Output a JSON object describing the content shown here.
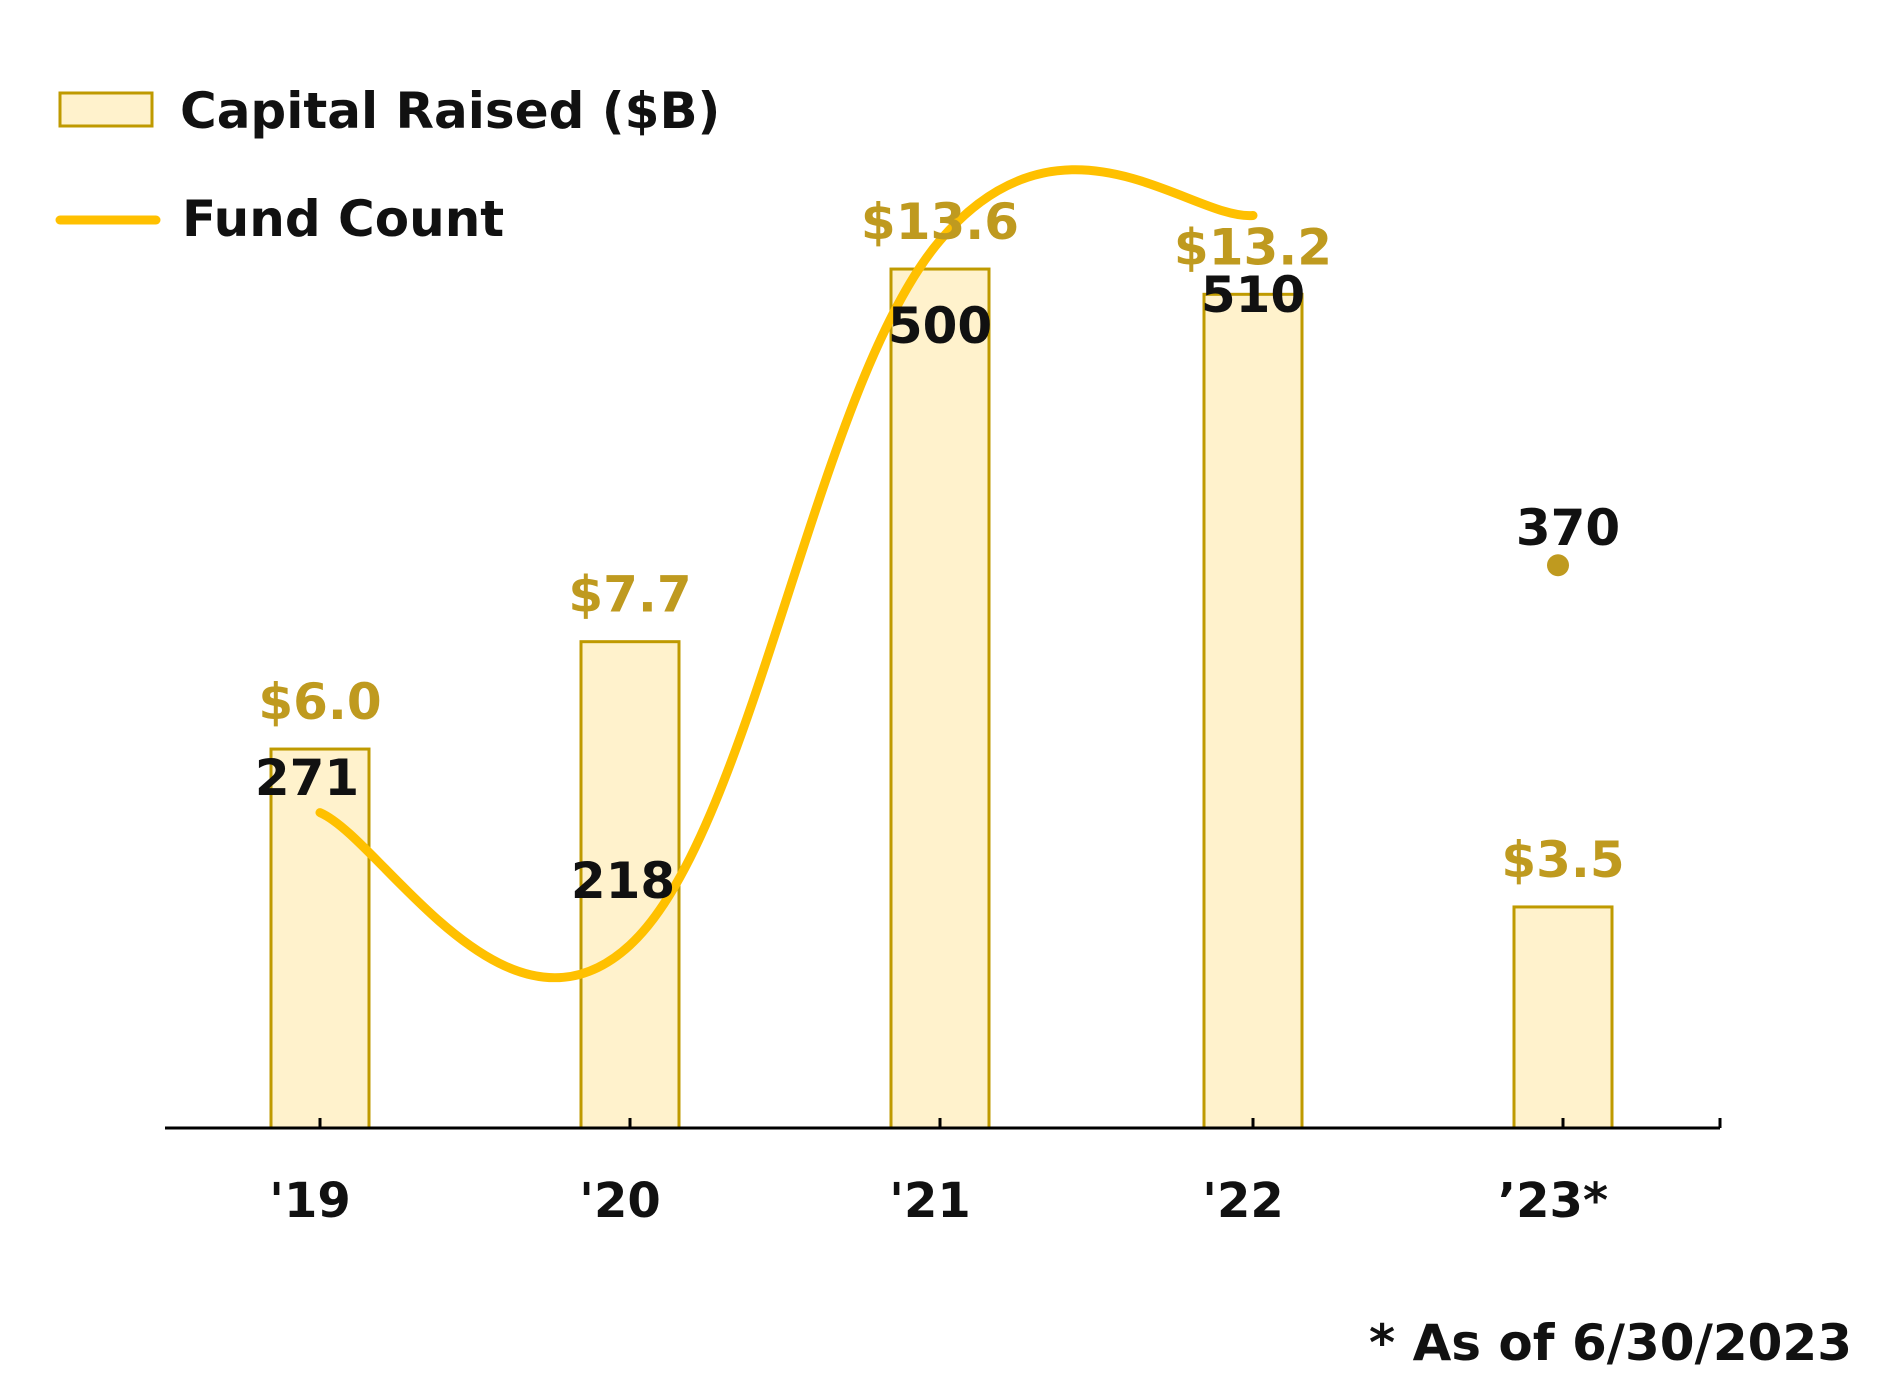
{
  "chart_data": {
    "type": "bar",
    "title": "",
    "xlabel": "",
    "ylabel": "",
    "categories": [
      "'19",
      "'20",
      "'21",
      "'22",
      "’23*"
    ],
    "ylim": [
      0,
      15.2
    ],
    "series": [
      {
        "name": "Capital Raised ($B)",
        "type": "bar",
        "values": [
          6.0,
          7.7,
          13.6,
          13.2,
          3.5
        ],
        "labels": [
          "$6.0",
          "$7.7",
          "$13.6",
          "$13.2",
          "$3.5"
        ]
      },
      {
        "name": "Fund Count",
        "type": "line",
        "smooth": true,
        "connected_points": 4,
        "values": [
          271,
          218,
          500,
          510,
          370
        ],
        "labels": [
          "271",
          "218",
          "500",
          "510",
          "370"
        ]
      }
    ],
    "legend": {
      "position": "top-left",
      "entries": [
        "Capital Raised ($B)",
        "Fund Count"
      ]
    },
    "grid": false,
    "footnote": "* As of 6/30/2023"
  },
  "colors": {
    "bar_fill": "#FFF2CC",
    "bar_stroke": "#BF9A00",
    "bar_label": "#BF9A1F",
    "line": "#FFC000",
    "point": "#BF9A1F",
    "axis": "#000000",
    "text": "#111111"
  }
}
